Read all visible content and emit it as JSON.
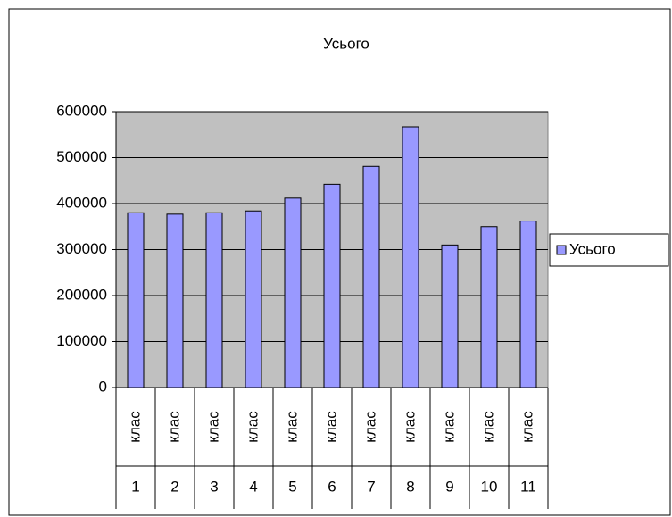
{
  "chart_data": {
    "type": "bar",
    "title": "Усього",
    "categories": [
      "клас",
      "клас",
      "клас",
      "клас",
      "клас",
      "клас",
      "клас",
      "клас",
      "клас",
      "клас",
      "клас"
    ],
    "category_groups": [
      "1",
      "2",
      "3",
      "4",
      "5",
      "6",
      "7",
      "8",
      "9",
      "10",
      "11"
    ],
    "series": [
      {
        "name": "Усього",
        "color": "#9999ff",
        "values": [
          380000,
          377000,
          380000,
          384000,
          412000,
          442000,
          481000,
          567000,
          310000,
          350000,
          362000
        ]
      }
    ],
    "ylim": [
      0,
      600000
    ],
    "yticks": [
      0,
      100000,
      200000,
      300000,
      400000,
      500000,
      600000
    ],
    "grid": true,
    "legend": "right"
  }
}
